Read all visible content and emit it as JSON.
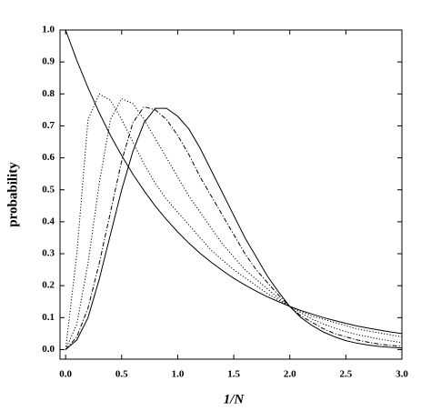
{
  "chart_data": {
    "type": "line",
    "x_label": "1/N",
    "y_label": "probability",
    "x": [
      0,
      0.1,
      0.2,
      0.3,
      0.4,
      0.5,
      0.6,
      0.7,
      0.8,
      0.9,
      1.0,
      1.1,
      1.2,
      1.3,
      1.4,
      1.5,
      1.6,
      1.7,
      1.8,
      1.9,
      2.0,
      2.1,
      2.2,
      2.3,
      2.4,
      2.5,
      2.6,
      2.7,
      2.8,
      2.9,
      3.0
    ],
    "series": [
      {
        "color": "#000000",
        "style": "solid",
        "values": [
          1.0,
          0.905,
          0.819,
          0.741,
          0.67,
          0.607,
          0.549,
          0.497,
          0.449,
          0.407,
          0.368,
          0.333,
          0.301,
          0.273,
          0.247,
          0.223,
          0.202,
          0.183,
          0.165,
          0.15,
          0.135,
          0.122,
          0.111,
          0.1,
          0.091,
          0.082,
          0.074,
          0.067,
          0.061,
          0.055,
          0.05
        ]
      },
      {
        "color": "#000000",
        "style": "dotted",
        "values": [
          0,
          0.3,
          0.72,
          0.8,
          0.78,
          0.72,
          0.65,
          0.58,
          0.52,
          0.47,
          0.43,
          0.39,
          0.35,
          0.31,
          0.28,
          0.25,
          0.225,
          0.2,
          0.175,
          0.155,
          0.135,
          0.12,
          0.105,
          0.095,
          0.085,
          0.075,
          0.065,
          0.058,
          0.052,
          0.046,
          0.04
        ]
      },
      {
        "color": "#000000",
        "style": "dotted",
        "values": [
          0,
          0.08,
          0.27,
          0.52,
          0.72,
          0.785,
          0.77,
          0.72,
          0.66,
          0.6,
          0.54,
          0.48,
          0.43,
          0.38,
          0.33,
          0.29,
          0.25,
          0.22,
          0.19,
          0.16,
          0.135,
          0.115,
          0.095,
          0.08,
          0.067,
          0.056,
          0.047,
          0.04,
          0.033,
          0.027,
          0.022
        ]
      },
      {
        "color": "#000000",
        "style": "dashdot",
        "values": [
          0,
          0.04,
          0.13,
          0.27,
          0.43,
          0.59,
          0.71,
          0.76,
          0.75,
          0.72,
          0.67,
          0.61,
          0.54,
          0.48,
          0.42,
          0.36,
          0.3,
          0.25,
          0.21,
          0.17,
          0.135,
          0.105,
          0.085,
          0.065,
          0.05,
          0.04,
          0.03,
          0.023,
          0.017,
          0.013,
          0.01
        ]
      },
      {
        "color": "#000000",
        "style": "solid",
        "values": [
          0,
          0.03,
          0.1,
          0.22,
          0.36,
          0.5,
          0.62,
          0.71,
          0.755,
          0.755,
          0.73,
          0.69,
          0.63,
          0.56,
          0.49,
          0.42,
          0.35,
          0.29,
          0.23,
          0.18,
          0.135,
          0.1,
          0.075,
          0.055,
          0.04,
          0.028,
          0.02,
          0.014,
          0.01,
          0.007,
          0.005
        ]
      }
    ],
    "xlim": [
      -0.05,
      3.0
    ],
    "ylim": [
      -0.03,
      1.0
    ],
    "xticks": [
      {
        "value": 0,
        "label": "0.0"
      },
      {
        "value": 0.5,
        "label": "0.5"
      },
      {
        "value": 1,
        "label": "1.0"
      },
      {
        "value": 1.5,
        "label": "1.5"
      },
      {
        "value": 2,
        "label": "2.0"
      },
      {
        "value": 2.5,
        "label": "2.5"
      },
      {
        "value": 3,
        "label": "3.0"
      }
    ],
    "yticks": [
      {
        "value": 0,
        "label": "0.0"
      },
      {
        "value": 0.1,
        "label": "0.1"
      },
      {
        "value": 0.2,
        "label": "0.2"
      },
      {
        "value": 0.3,
        "label": "0.3"
      },
      {
        "value": 0.4,
        "label": "0.4"
      },
      {
        "value": 0.5,
        "label": "0.5"
      },
      {
        "value": 0.6,
        "label": "0.6"
      },
      {
        "value": 0.7,
        "label": "0.7"
      },
      {
        "value": 0.8,
        "label": "0.8"
      },
      {
        "value": 0.9,
        "label": "0.9"
      },
      {
        "value": 1,
        "label": "1.0"
      }
    ],
    "grid": false
  }
}
